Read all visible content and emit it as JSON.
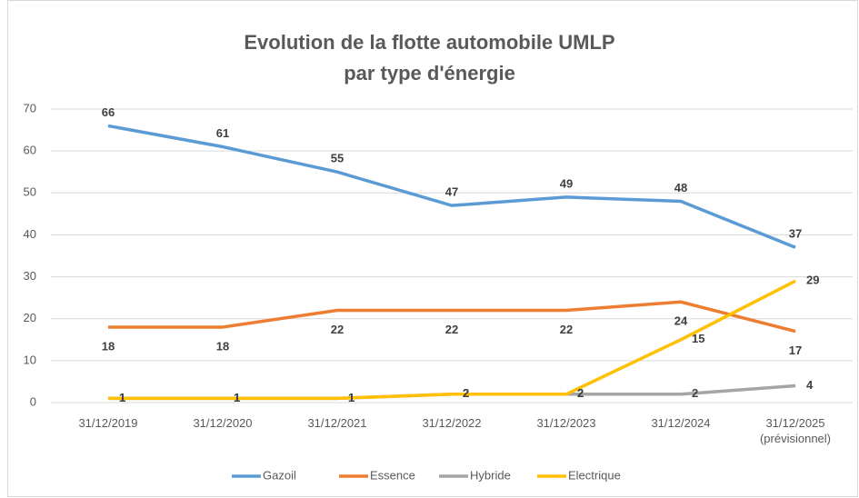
{
  "chart_data": {
    "type": "line",
    "title": "Evolution de la flotte automobile UMLP\npar type d'énergie",
    "categories": [
      "31/12/2019",
      "31/12/2020",
      "31/12/2021",
      "31/12/2022",
      "31/12/2023",
      "31/12/2024",
      "31/12/2025\n(prévisionnel)"
    ],
    "series": [
      {
        "name": "Gazoil",
        "color": "#5b9bd5",
        "values": [
          66,
          61,
          55,
          47,
          49,
          48,
          37
        ]
      },
      {
        "name": "Essence",
        "color": "#ed7d31",
        "values": [
          18,
          18,
          22,
          22,
          22,
          24,
          17
        ]
      },
      {
        "name": "Hybride",
        "color": "#a5a5a5",
        "values": [
          1,
          1,
          1,
          2,
          2,
          2,
          4
        ]
      },
      {
        "name": "Electrique",
        "color": "#ffc000",
        "values": [
          1,
          1,
          1,
          2,
          2,
          15,
          29
        ]
      }
    ],
    "ylim": [
      0,
      70
    ],
    "yticks": [
      0,
      10,
      20,
      30,
      40,
      50,
      60,
      70
    ],
    "grid": true,
    "legend": "bottom"
  }
}
